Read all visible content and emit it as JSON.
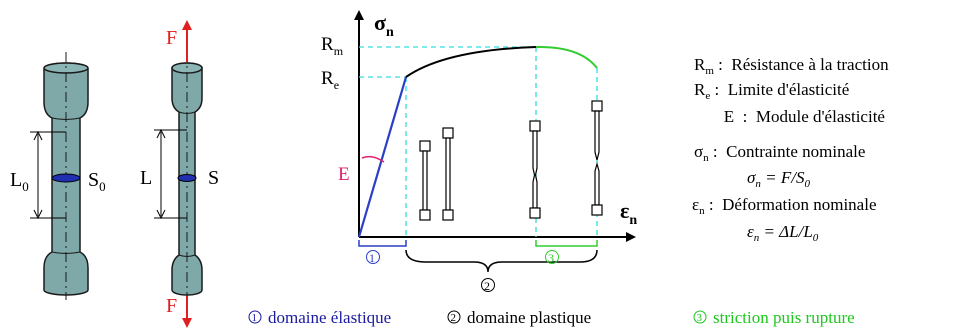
{
  "specimens": {
    "initial": {
      "length_label": "L",
      "length_sub": "0",
      "section_label": "S",
      "section_sub": "0"
    },
    "loaded": {
      "force_top": "F",
      "force_bottom": "F",
      "length_label": "L",
      "section_label": "S"
    }
  },
  "chart": {
    "y_axis_symbol": "σ",
    "y_axis_sub": "n",
    "x_axis_symbol": "ε",
    "x_axis_sub": "n",
    "tick_rm": "R",
    "tick_rm_sub": "m",
    "tick_re": "R",
    "tick_re_sub": "e",
    "slope_label": "E",
    "zone_marks": [
      "①",
      "②",
      "③"
    ]
  },
  "legend": {
    "rm": {
      "sym": "R",
      "sub": "m",
      "text": " :  Résistance à la traction"
    },
    "re": {
      "sym": "R",
      "sub": "e",
      "text": " :  Limite d'élasticité"
    },
    "e": {
      "sym": "E",
      "text": "  :  Module d'élasticité"
    },
    "sigma": {
      "sym": "σ",
      "sub": "n",
      "text": " :  Contrainte nominale"
    },
    "sigma_formula": {
      "lhs": "σ",
      "lhs_sub": "n",
      "rhs": " = F/S",
      "rhs_sub": "0"
    },
    "eps": {
      "sym": "ε",
      "sub": "n",
      "text": " :  Déformation nominale"
    },
    "eps_formula": {
      "lhs": "ε",
      "lhs_sub": "n",
      "rhs": " = ΔL/L",
      "rhs_sub": "0"
    }
  },
  "captions": [
    {
      "mark": "①",
      "text": "domaine élastique",
      "color": "#1a1aa0"
    },
    {
      "mark": "②",
      "text": "domaine plastique",
      "color": "#000000"
    },
    {
      "mark": "③",
      "text": "striction puis rupture",
      "color": "#1ec81e"
    }
  ],
  "colors": {
    "specimen_fill": "#7fa8a8",
    "force": "#e02020",
    "elastic": "#2a3fc8",
    "plastic_curve": "#000000",
    "necking_curve": "#33cc33",
    "guide_lines": "#33dddd",
    "modulus": "#e0206e"
  }
}
